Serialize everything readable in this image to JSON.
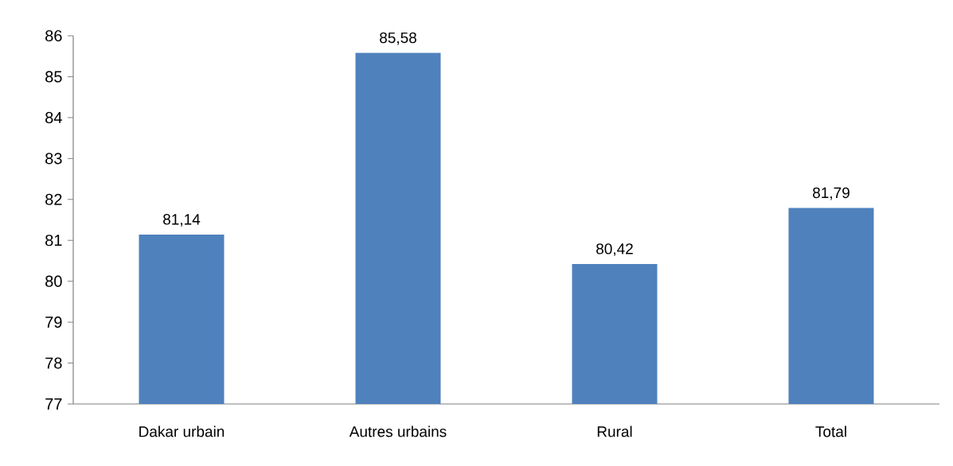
{
  "chart_data": {
    "type": "bar",
    "categories": [
      "Dakar urbain",
      "Autres urbains",
      "Rural",
      "Total"
    ],
    "values": [
      81.14,
      85.58,
      80.42,
      81.79
    ],
    "value_labels": [
      "81,14",
      "85,58",
      "80,42",
      "81,79"
    ],
    "color": "#4f81bd",
    "ylim": [
      77,
      86
    ],
    "yticks": [
      77,
      78,
      79,
      80,
      81,
      82,
      83,
      84,
      85,
      86
    ]
  }
}
